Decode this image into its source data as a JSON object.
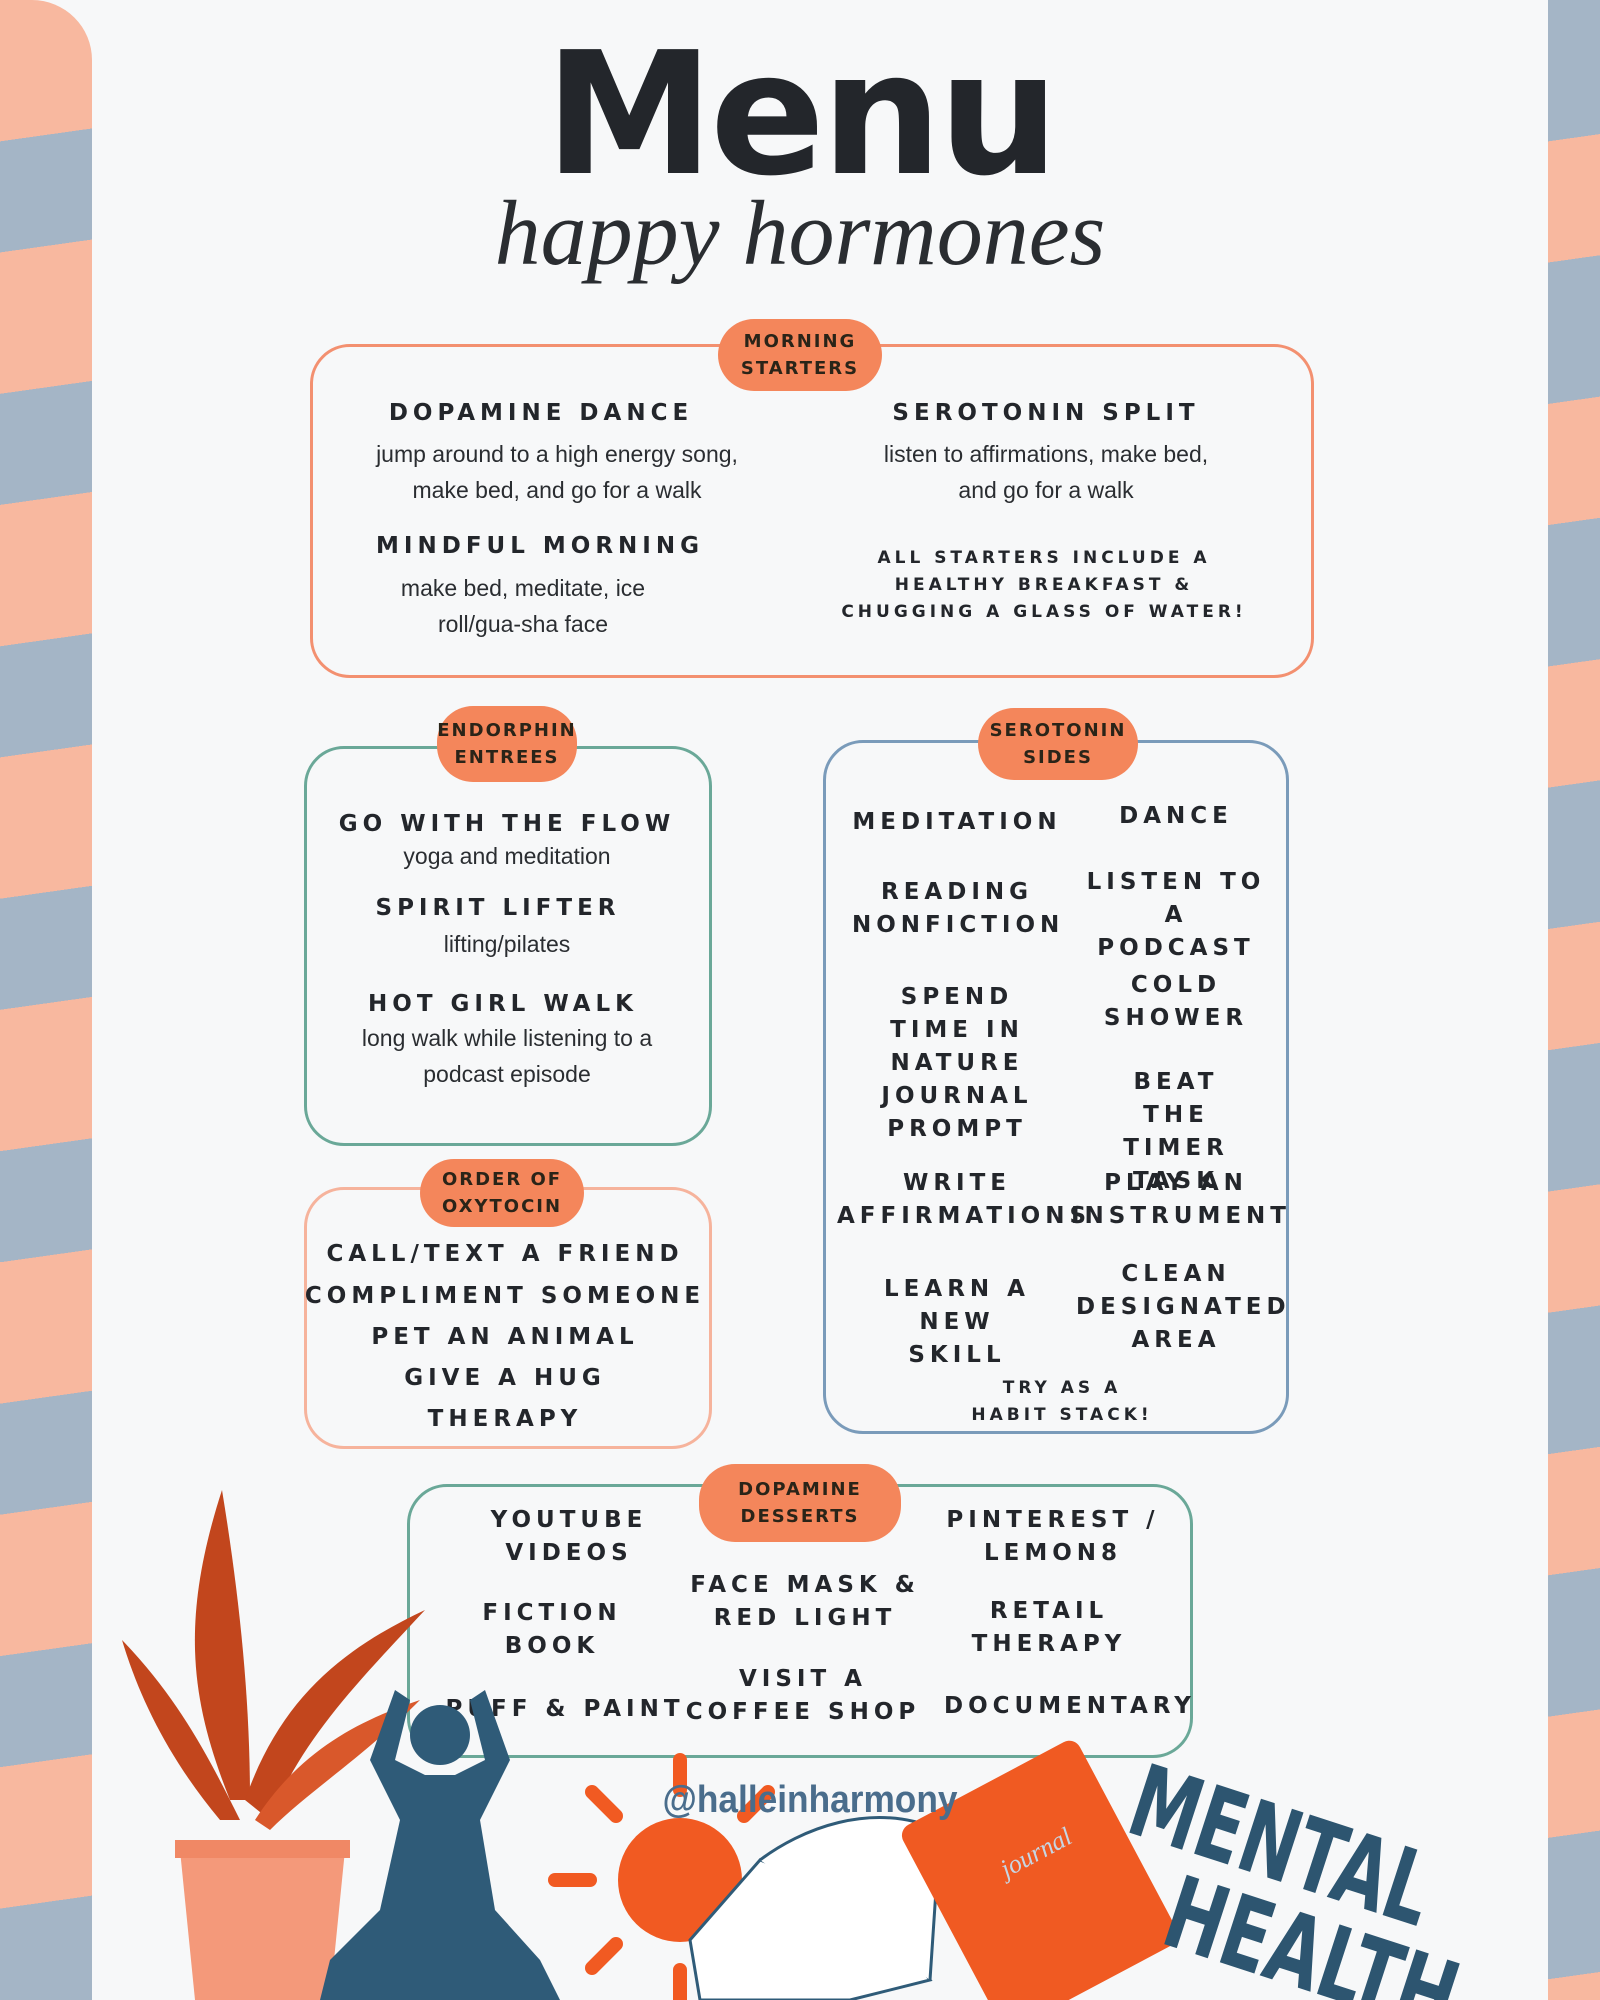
{
  "header": {
    "title": "Menu",
    "subtitle": "happy hormones"
  },
  "morning_starters": {
    "label": "MORNING STARTERS",
    "items": [
      {
        "name": "DOPAMINE DANCE",
        "description": "jump around to a high energy song, make bed, and go for a walk"
      },
      {
        "name": "SEROTONIN SPLIT",
        "description": "listen to affirmations, make bed, and go for a walk"
      },
      {
        "name": "MINDFUL MORNING",
        "description": "make bed, meditate, ice roll/gua-sha face"
      }
    ],
    "note": "ALL STARTERS INCLUDE A HEALTHY BREAKFAST & CHUGGING A GLASS OF WATER!"
  },
  "endorphin_entrees": {
    "label": "ENDORPHIN ENTREES",
    "items": [
      {
        "name": "GO WITH THE FLOW",
        "description": "yoga and meditation"
      },
      {
        "name": "SPIRIT LIFTER",
        "description": "lifting/pilates"
      },
      {
        "name": "HOT GIRL WALK",
        "description": "long walk while listening to a podcast episode"
      }
    ]
  },
  "order_of_oxytocin": {
    "label": "ORDER OF OXYTOCIN",
    "items": [
      "CALL/TEXT A FRIEND",
      "COMPLIMENT SOMEONE",
      "PET AN ANIMAL",
      "GIVE A HUG",
      "THERAPY"
    ]
  },
  "serotonin_sides": {
    "label": "SEROTONIN SIDES",
    "left": [
      "MEDITATION",
      "READING NONFICTION",
      "SPEND TIME IN NATURE",
      "JOURNAL PROMPT",
      "WRITE AFFIRMATIONS",
      "LEARN A NEW SKILL"
    ],
    "right": [
      "DANCE",
      "LISTEN TO A PODCAST",
      "COLD SHOWER",
      "BEAT THE TIMER TASK",
      "PLAY AN INSTRUMENT",
      "CLEAN DESIGNATED AREA"
    ],
    "note": "TRY AS A HABIT STACK!"
  },
  "dopamine_desserts": {
    "label": "DOPAMINE DESSERTS",
    "items": [
      "YOUTUBE VIDEOS",
      "FICTION BOOK",
      "PUFF & PAINT",
      "FACE MASK & RED LIGHT",
      "VISIT A COFFEE SHOP",
      "PINTEREST / LEMON8",
      "RETAIL THERAPY",
      "DOCUMENTARY"
    ]
  },
  "footer": {
    "handle": "@halleinharmony",
    "journal": "journal",
    "badge": [
      "MENTAL",
      "HEALTH"
    ]
  }
}
